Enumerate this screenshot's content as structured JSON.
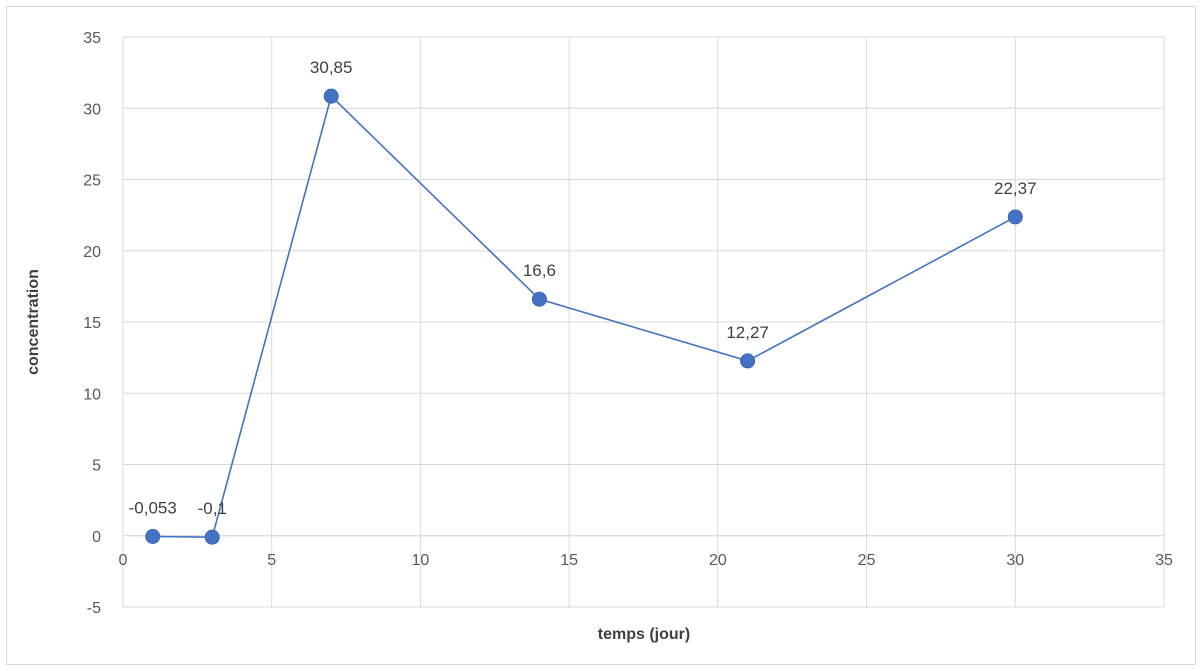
{
  "chart_data": {
    "type": "scatter",
    "title": "",
    "xlabel": "temps (jour)",
    "ylabel": "concentration",
    "xlim": [
      0,
      35
    ],
    "ylim": [
      -5,
      35
    ],
    "xticks": [
      0,
      5,
      10,
      15,
      20,
      25,
      30,
      35
    ],
    "yticks": [
      -5,
      0,
      5,
      10,
      15,
      20,
      25,
      30,
      35
    ],
    "grid": true,
    "legend": "none",
    "series": [
      {
        "x": [
          1,
          3,
          7,
          14,
          21,
          30
        ],
        "y": [
          -0.053,
          -0.1,
          30.85,
          16.6,
          12.27,
          22.37
        ],
        "labels": [
          "-0,053",
          "-0,1",
          "30,85",
          "16,6",
          "12,27",
          "22,37"
        ],
        "color": "#4472c4",
        "line": "straight",
        "marker": "circle"
      }
    ],
    "colors": {
      "line": "#4472c4",
      "grid": "#d9d9d9",
      "text": "#595959"
    }
  }
}
